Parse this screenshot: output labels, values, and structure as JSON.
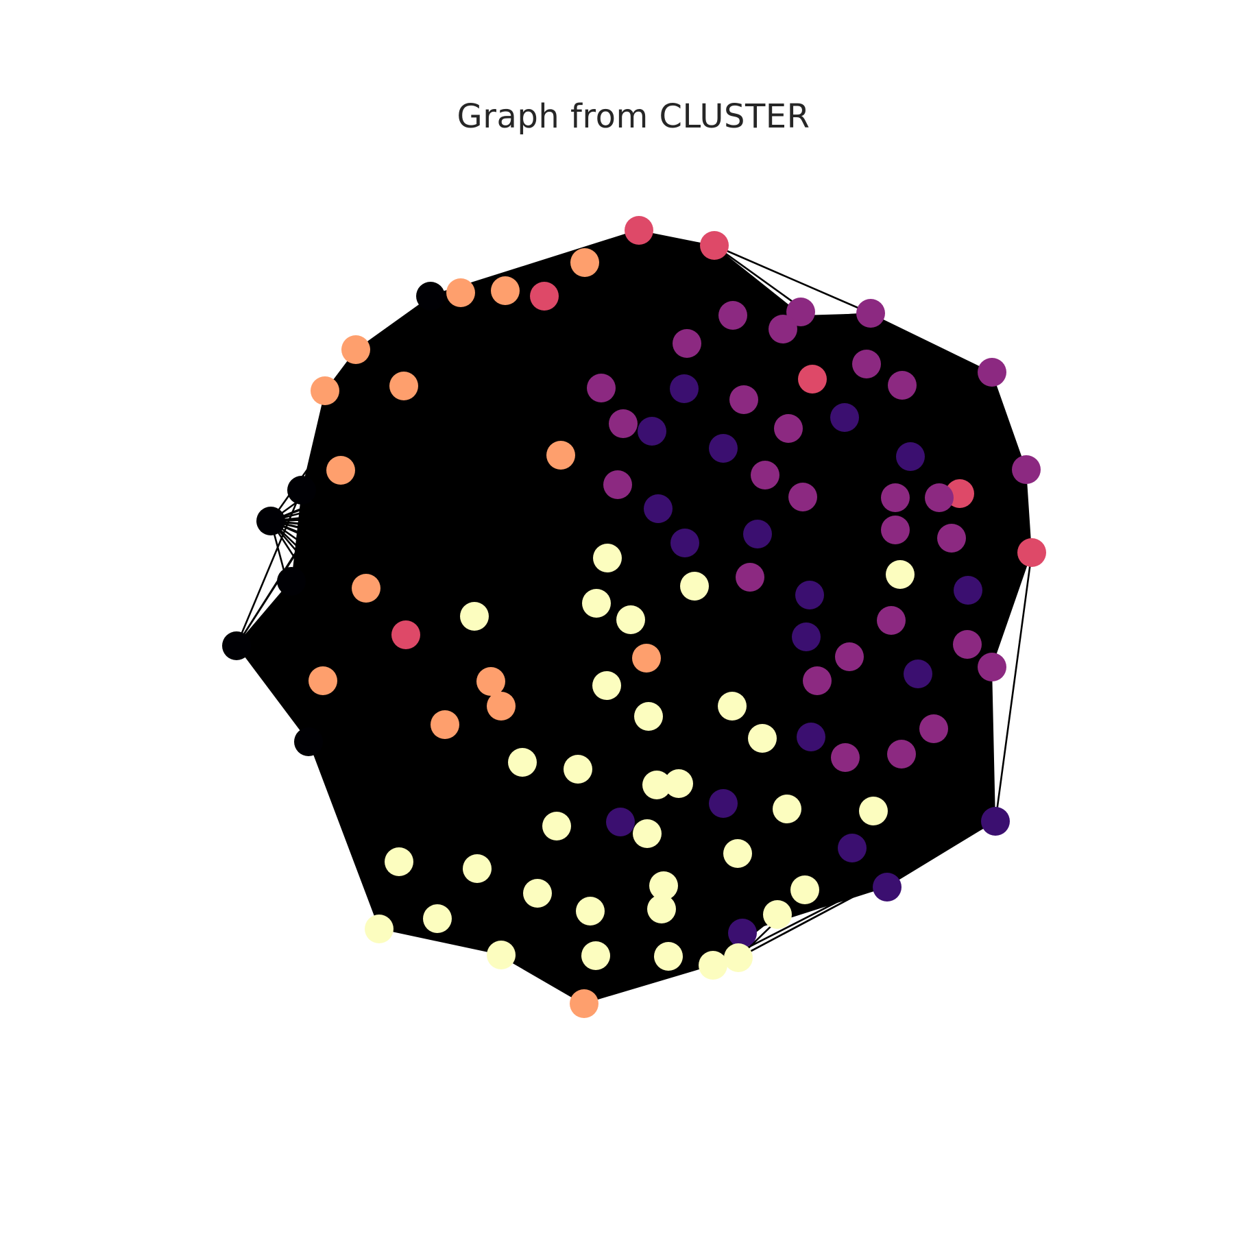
{
  "title": "Graph from CLUSTER",
  "graph": {
    "edge_color": "#000000",
    "node_groups": [
      {
        "id": "black",
        "color": "#000004"
      },
      {
        "id": "indigo",
        "color": "#3b0f70"
      },
      {
        "id": "purple",
        "color": "#8c2981"
      },
      {
        "id": "rose",
        "color": "#de4968"
      },
      {
        "id": "peach",
        "color": "#fe9f6d"
      },
      {
        "id": "cream",
        "color": "#fcfdbf"
      }
    ],
    "node_counts": {
      "black": 6,
      "indigo": 18,
      "purple": 26,
      "rose": 7,
      "peach": 16,
      "cream": 34
    }
  }
}
